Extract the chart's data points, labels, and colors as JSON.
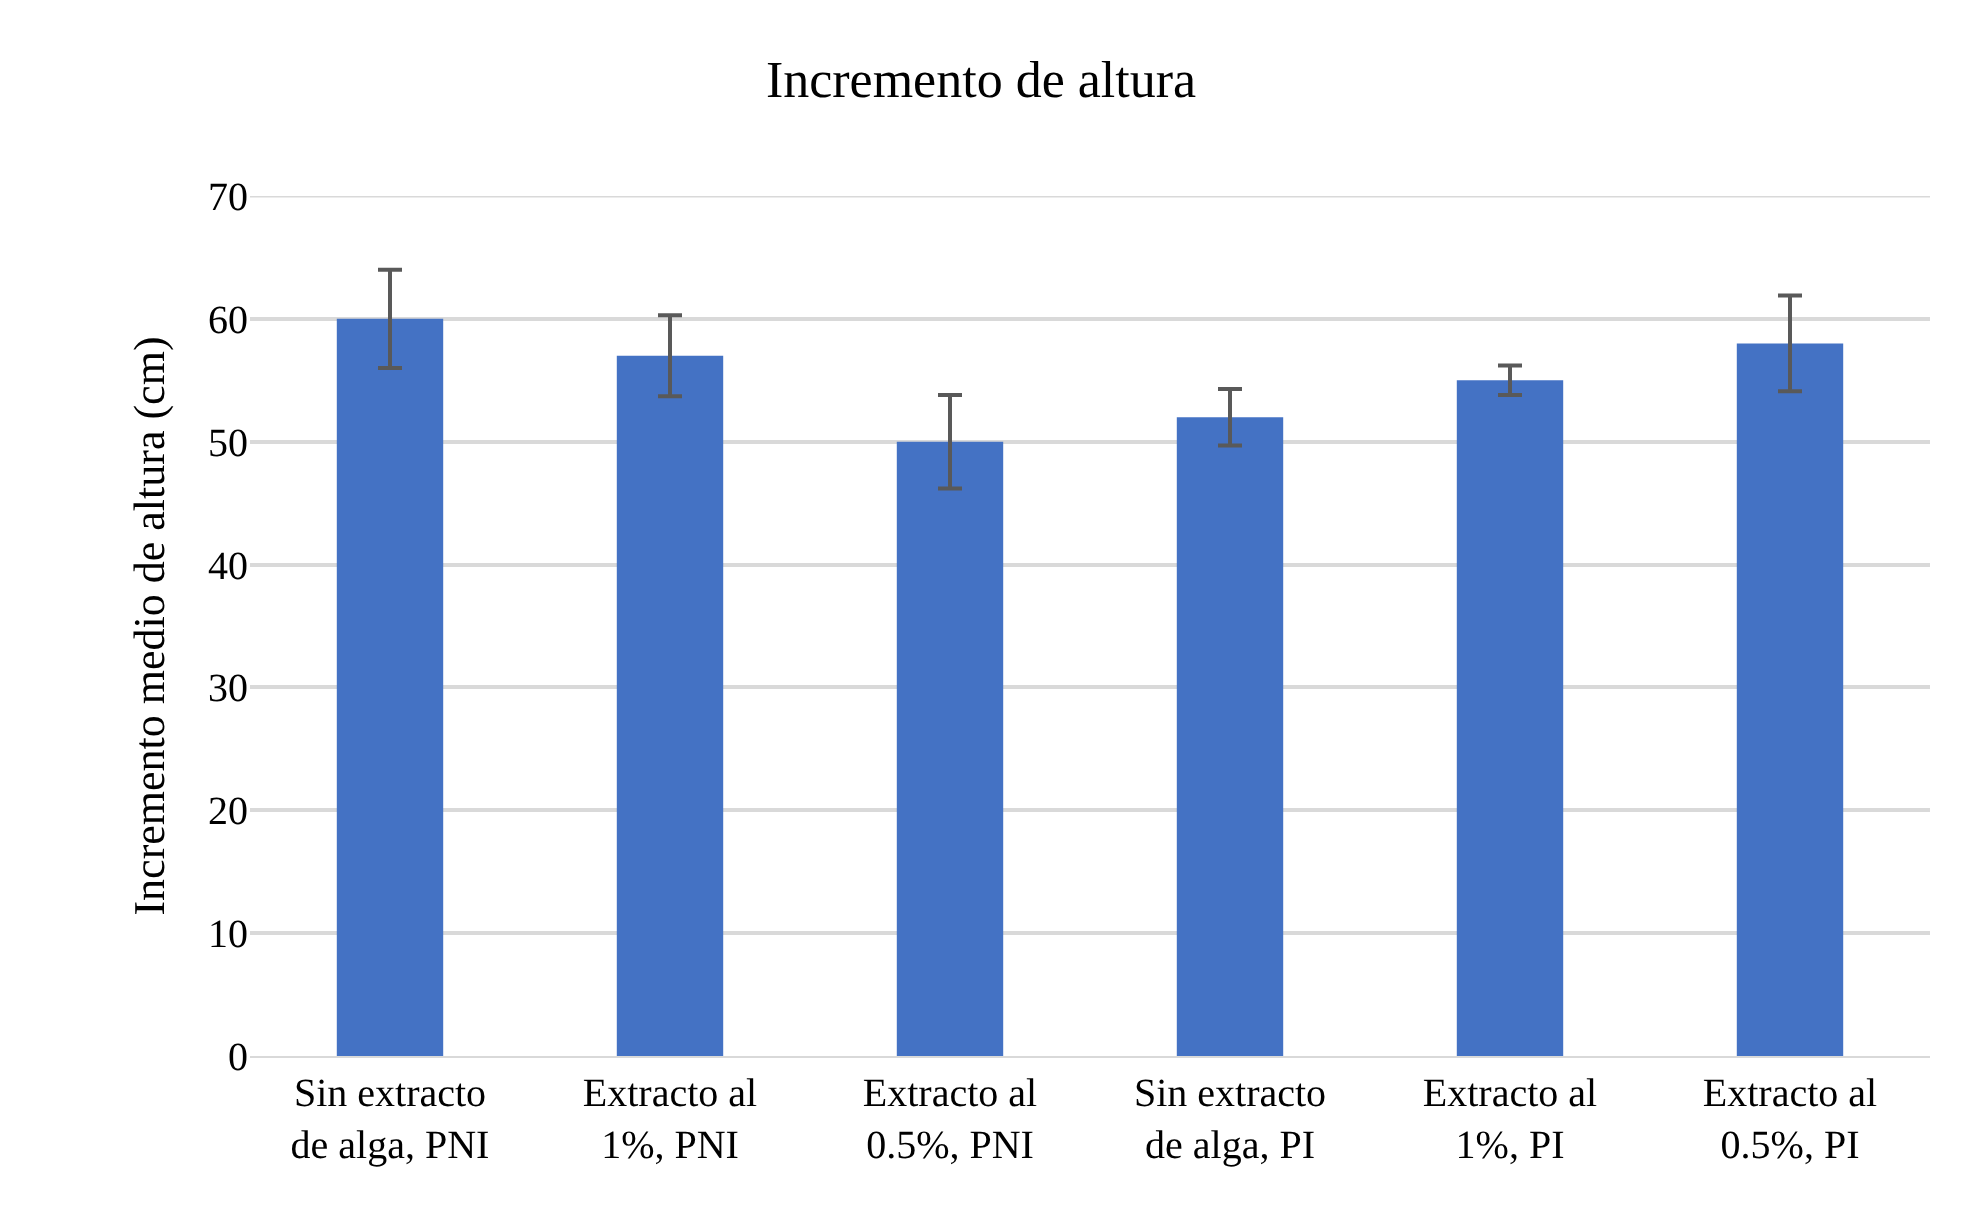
{
  "chart_data": {
    "type": "bar",
    "title": "Incremento de altura",
    "ylabel": "Incremento medio de altura (cm)",
    "categories": [
      "Sin extracto de alga, PNI",
      "Extracto al 1%, PNI",
      "Extracto al 0.5%, PNI",
      "Sin extracto de alga, PI",
      "Extracto al 1%, PI",
      "Extracto al 0.5%, PI"
    ],
    "values": [
      60,
      57,
      50,
      52,
      55,
      58
    ],
    "errors": [
      4.0,
      3.3,
      3.8,
      2.3,
      1.2,
      3.9
    ],
    "color": "#4472c4",
    "ylim": [
      0,
      70
    ],
    "yticks": [
      0,
      10,
      20,
      30,
      40,
      50,
      60,
      70
    ],
    "grid": "y"
  }
}
